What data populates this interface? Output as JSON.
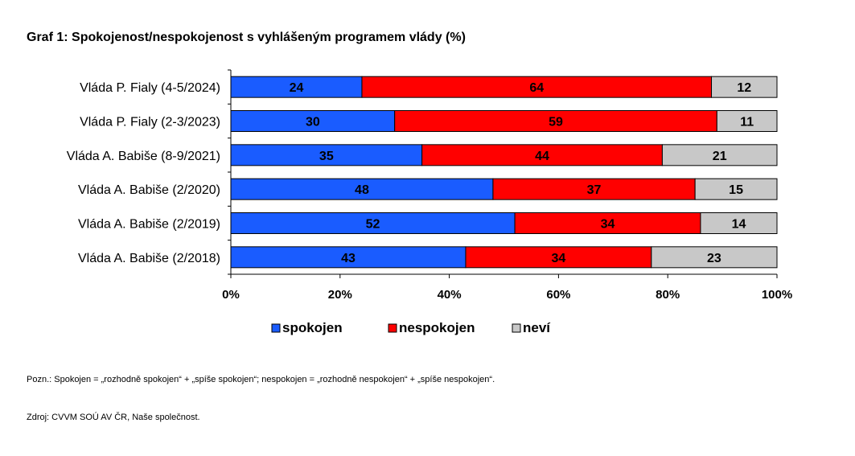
{
  "title": "Graf 1: Spokojenost/nespokojenost s vyhlášeným programem vlády (%)",
  "note": "Pozn.: Spokojen = „rozhodně spokojen“ + „spíše spokojen“; nespokojen = „rozhodně nespokojen“ + „spíše nespokojen“.",
  "source": "Zdroj: CVVM SOÚ AV ČR, Naše společnost.",
  "chart_data": {
    "type": "bar",
    "orientation": "horizontal",
    "stacked": "percent",
    "categories": [
      "Vláda P. Fialy (4-5/2024)",
      "Vláda P. Fialy (2-3/2023)",
      "Vláda A. Babiše (8-9/2021)",
      "Vláda A. Babiše (2/2020)",
      "Vláda A. Babiše (2/2019)",
      "Vláda A. Babiše (2/2018)"
    ],
    "series": [
      {
        "name": "spokojen",
        "color": "#1a5cff",
        "values": [
          24,
          30,
          35,
          48,
          52,
          43
        ]
      },
      {
        "name": "nespokojen",
        "color": "#ff0000",
        "values": [
          64,
          59,
          44,
          37,
          34,
          34
        ]
      },
      {
        "name": "neví",
        "color": "#c8c8c8",
        "values": [
          12,
          11,
          21,
          15,
          14,
          23
        ]
      }
    ],
    "x_ticks": [
      "0%",
      "20%",
      "40%",
      "60%",
      "80%",
      "100%"
    ],
    "xlim": [
      0,
      100
    ],
    "legend_position": "bottom",
    "grid": false
  }
}
